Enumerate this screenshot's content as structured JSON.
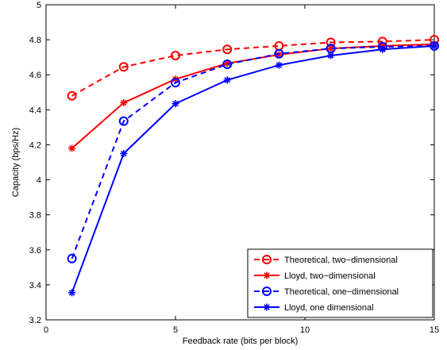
{
  "chart_data": {
    "type": "line",
    "xlabel": "Feedback rate (bits per block)",
    "ylabel": "Capacity (bps/Hz)",
    "xlim": [
      0,
      15
    ],
    "ylim": [
      3.2,
      5
    ],
    "x_ticks": [
      0,
      5,
      10,
      15
    ],
    "y_ticks": [
      3.2,
      3.4,
      3.6,
      3.8,
      4,
      4.2,
      4.4,
      4.6,
      4.8,
      5
    ],
    "x_tick_labels": [
      "0",
      "5",
      "10",
      "15"
    ],
    "y_tick_labels": [
      "3.2",
      "3.4",
      "3.6",
      "3.8",
      "4",
      "4.2",
      "4.4",
      "4.6",
      "4.8",
      "5"
    ],
    "grid": false,
    "legend_position": "bottom-right",
    "series": [
      {
        "name": "Theoretical, two−dimensional",
        "color": "#ff0000",
        "line": "dashed",
        "marker": "circle",
        "x": [
          1,
          3,
          5,
          7,
          9,
          11,
          13,
          15
        ],
        "y": [
          4.48,
          4.645,
          4.71,
          4.745,
          4.765,
          4.785,
          4.79,
          4.8
        ]
      },
      {
        "name": "Lloyd, two−dimensional",
        "color": "#ff0000",
        "line": "solid",
        "marker": "asterisk",
        "x": [
          1,
          3,
          5,
          7,
          9,
          11,
          13,
          15
        ],
        "y": [
          4.18,
          4.44,
          4.575,
          4.665,
          4.715,
          4.75,
          4.765,
          4.775
        ]
      },
      {
        "name": "Theoretical, one−dimensional",
        "color": "#0000ff",
        "line": "dashed",
        "marker": "circle",
        "x": [
          1,
          3,
          5,
          7,
          9,
          11,
          13,
          15
        ],
        "y": [
          3.55,
          4.335,
          4.555,
          4.66,
          4.72,
          4.75,
          4.76,
          4.765
        ]
      },
      {
        "name": "Lloyd, one dimensional",
        "color": "#0000ff",
        "line": "solid",
        "marker": "asterisk",
        "x": [
          1,
          3,
          5,
          7,
          9,
          11,
          13,
          15
        ],
        "y": [
          3.355,
          4.15,
          4.435,
          4.57,
          4.655,
          4.71,
          4.745,
          4.765
        ]
      }
    ]
  }
}
